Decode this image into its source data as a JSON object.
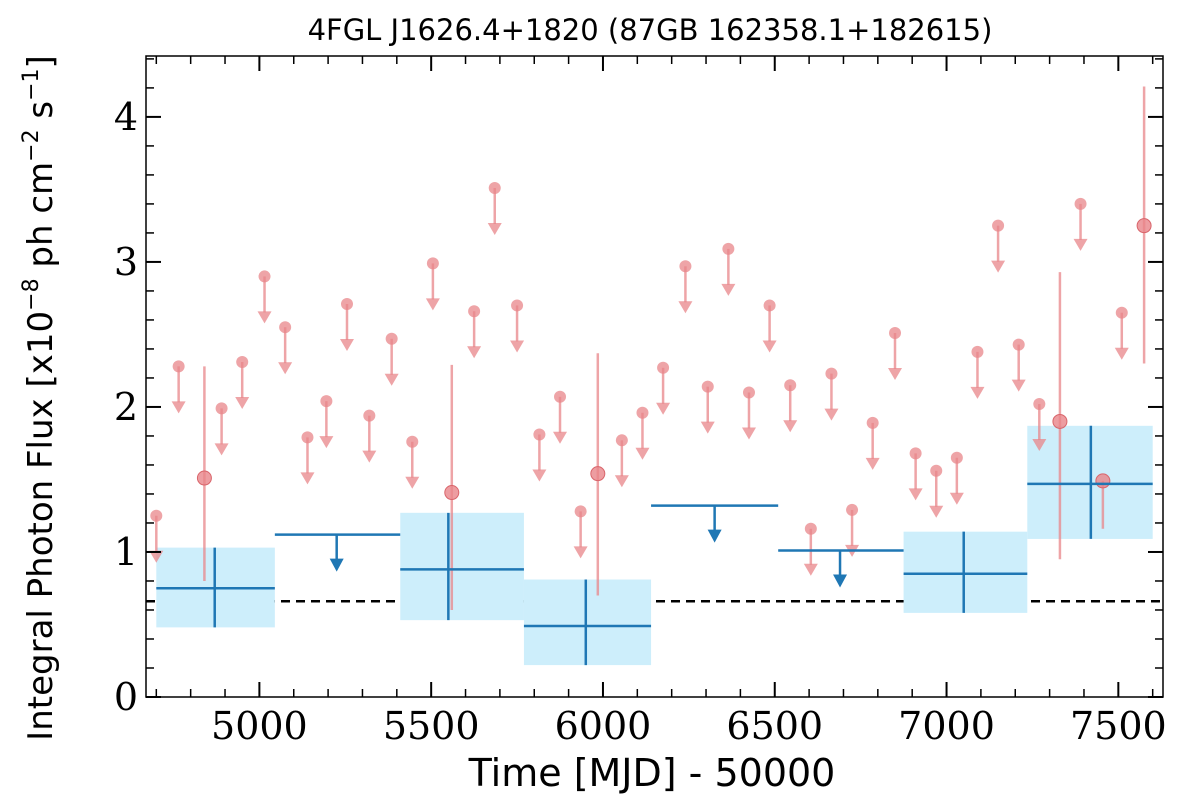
{
  "chart_data": {
    "type": "scatter",
    "title": "4FGL J1626.4+1820 (87GB 162358.1+182615)",
    "xlabel": "Time [MJD] - 50000",
    "ylabel_main": "Integral Photon Flux [x10",
    "ylabel_exp1": "−8",
    "ylabel_mid": " ph cm",
    "ylabel_exp2": "−2",
    "ylabel_end": " s",
    "ylabel_exp3": "−1",
    "ylabel_close": "]",
    "xlim": [
      4670,
      7630
    ],
    "ylim": [
      0,
      4.42
    ],
    "x_ticks": [
      5000,
      5500,
      6000,
      6500,
      7000,
      7500
    ],
    "x_tick_labels": [
      "5000",
      "5500",
      "6000",
      "6500",
      "7000",
      "7500"
    ],
    "y_ticks": [
      0,
      1,
      2,
      3,
      4
    ],
    "y_tick_labels": [
      "0",
      "1",
      "2",
      "3",
      "4"
    ],
    "average_flux": 0.66,
    "colors": {
      "short_bins": "#e8858a",
      "long_bins": "#1f77b4",
      "long_band": "#cdeefb",
      "average_line": "#000000"
    },
    "series": [
      {
        "id": "short_bin_detections",
        "points": [
          {
            "x": 4840,
            "y": 1.51,
            "ylo": 0.8,
            "yhi": 2.28
          },
          {
            "x": 5560,
            "y": 1.41,
            "ylo": 0.6,
            "yhi": 2.29
          },
          {
            "x": 5985,
            "y": 1.54,
            "ylo": 0.7,
            "yhi": 2.37
          },
          {
            "x": 7330,
            "y": 1.9,
            "ylo": 0.95,
            "yhi": 2.93
          },
          {
            "x": 7455,
            "y": 1.49,
            "ylo": 1.16,
            "yhi": 1.49
          },
          {
            "x": 7575,
            "y": 3.25,
            "ylo": 2.3,
            "yhi": 4.21
          }
        ]
      },
      {
        "id": "short_bin_upper_limits",
        "points": [
          {
            "x": 4700,
            "y": 1.25
          },
          {
            "x": 4765,
            "y": 2.28
          },
          {
            "x": 4890,
            "y": 1.99
          },
          {
            "x": 4950,
            "y": 2.31
          },
          {
            "x": 5015,
            "y": 2.9
          },
          {
            "x": 5075,
            "y": 2.55
          },
          {
            "x": 5140,
            "y": 1.79
          },
          {
            "x": 5195,
            "y": 2.04
          },
          {
            "x": 5255,
            "y": 2.71
          },
          {
            "x": 5320,
            "y": 1.94
          },
          {
            "x": 5385,
            "y": 2.47
          },
          {
            "x": 5445,
            "y": 1.76
          },
          {
            "x": 5505,
            "y": 2.99
          },
          {
            "x": 5625,
            "y": 2.66
          },
          {
            "x": 5685,
            "y": 3.51
          },
          {
            "x": 5750,
            "y": 2.7
          },
          {
            "x": 5815,
            "y": 1.81
          },
          {
            "x": 5875,
            "y": 2.07
          },
          {
            "x": 5935,
            "y": 1.28
          },
          {
            "x": 6055,
            "y": 1.77
          },
          {
            "x": 6115,
            "y": 1.96
          },
          {
            "x": 6175,
            "y": 2.27
          },
          {
            "x": 6240,
            "y": 2.97
          },
          {
            "x": 6305,
            "y": 2.14
          },
          {
            "x": 6365,
            "y": 3.09
          },
          {
            "x": 6425,
            "y": 2.1
          },
          {
            "x": 6485,
            "y": 2.7
          },
          {
            "x": 6545,
            "y": 2.15
          },
          {
            "x": 6605,
            "y": 1.16
          },
          {
            "x": 6665,
            "y": 2.23
          },
          {
            "x": 6725,
            "y": 1.29
          },
          {
            "x": 6785,
            "y": 1.89
          },
          {
            "x": 6850,
            "y": 2.51
          },
          {
            "x": 6910,
            "y": 1.68
          },
          {
            "x": 6970,
            "y": 1.56
          },
          {
            "x": 7030,
            "y": 1.65
          },
          {
            "x": 7090,
            "y": 2.38
          },
          {
            "x": 7150,
            "y": 3.25
          },
          {
            "x": 7210,
            "y": 2.43
          },
          {
            "x": 7270,
            "y": 2.02
          },
          {
            "x": 7390,
            "y": 3.4
          },
          {
            "x": 7510,
            "y": 2.65
          }
        ]
      },
      {
        "id": "long_bin_detections",
        "points": [
          {
            "x": 4870,
            "x0": 4700,
            "x1": 5045,
            "y": 0.75,
            "ylo": 0.48,
            "yhi": 1.03
          },
          {
            "x": 5550,
            "x0": 5410,
            "x1": 5770,
            "y": 0.88,
            "ylo": 0.53,
            "yhi": 1.27
          },
          {
            "x": 5950,
            "x0": 5770,
            "x1": 6140,
            "y": 0.49,
            "ylo": 0.22,
            "yhi": 0.81
          },
          {
            "x": 7050,
            "x0": 6875,
            "x1": 7235,
            "y": 0.85,
            "ylo": 0.58,
            "yhi": 1.14
          },
          {
            "x": 7420,
            "x0": 7235,
            "x1": 7600,
            "y": 1.47,
            "ylo": 1.09,
            "yhi": 1.87
          }
        ]
      },
      {
        "id": "long_bin_upper_limits",
        "points": [
          {
            "x": 5225,
            "x0": 5045,
            "x1": 5410,
            "y": 1.12
          },
          {
            "x": 6325,
            "x0": 6140,
            "x1": 6510,
            "y": 1.32
          },
          {
            "x": 6690,
            "x0": 6510,
            "x1": 6875,
            "y": 1.01
          }
        ]
      }
    ]
  }
}
